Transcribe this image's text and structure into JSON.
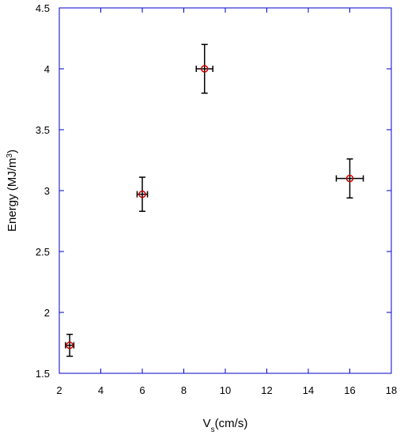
{
  "chart_data": {
    "type": "scatter",
    "xlabel_main": "V",
    "xlabel_sub": "s",
    "xlabel_rest": "(cm/s)",
    "ylabel_main": "Energy (MJ/m",
    "ylabel_sup": "3",
    "ylabel_rest": ")",
    "xlim": [
      2,
      18
    ],
    "ylim": [
      1.5,
      4.5
    ],
    "xticks": [
      2,
      4,
      6,
      8,
      10,
      12,
      14,
      16,
      18
    ],
    "xtick_labels": [
      "2",
      "4",
      "6",
      "8",
      "10",
      "12",
      "14",
      "16",
      "18"
    ],
    "yticks": [
      1.5,
      2,
      2.5,
      3,
      3.5,
      4,
      4.5
    ],
    "ytick_labels": [
      "1.5",
      "2",
      "2.5",
      "3",
      "3.5",
      "4",
      "4.5"
    ],
    "grid": false,
    "series": [
      {
        "points": [
          {
            "x": 2.5,
            "y": 1.73,
            "xerr": 0.2,
            "yerr": 0.09
          },
          {
            "x": 6.0,
            "y": 2.97,
            "xerr": 0.25,
            "yerr": 0.14
          },
          {
            "x": 9.0,
            "y": 4.0,
            "xerr": 0.4,
            "yerr": 0.2
          },
          {
            "x": 16.0,
            "y": 3.1,
            "xerr": 0.65,
            "yerr": 0.16
          }
        ]
      }
    ],
    "colors": {
      "frame": "#0000cc",
      "marker": "#cc0000",
      "errorbar": "#000000"
    }
  }
}
